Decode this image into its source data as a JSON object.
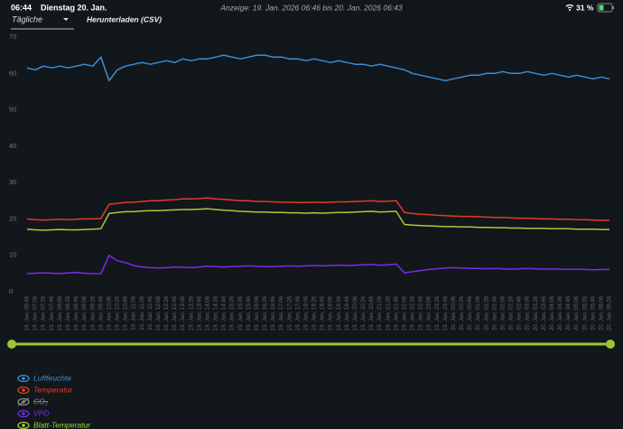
{
  "status_bar": {
    "time": "06:44",
    "date": "Dienstag 20. Jan.",
    "battery": "31 %"
  },
  "toolbar": {
    "range_info": "Anzeige: 19. Jan. 2026 06:46 bis 20. Jan. 2026 06:43",
    "period": "Tägliche",
    "download": "Herunterladen (CSV)"
  },
  "chart_data": {
    "type": "line",
    "categories": [
      "19. Jan. 06:46",
      "19. Jan. 07:06",
      "19. Jan. 07:26",
      "19. Jan. 07:46",
      "19. Jan. 08:06",
      "19. Jan. 08:26",
      "19. Jan. 08:46",
      "19. Jan. 09:06",
      "19. Jan. 09:26",
      "19. Jan. 09:46",
      "19. Jan. 10:06",
      "19. Jan. 10:26",
      "19. Jan. 10:46",
      "19. Jan. 11:06",
      "19. Jan. 11:26",
      "19. Jan. 11:46",
      "19. Jan. 12:06",
      "19. Jan. 12:26",
      "19. Jan. 12:46",
      "19. Jan. 13:06",
      "19. Jan. 13:26",
      "19. Jan. 13:46",
      "19. Jan. 14:06",
      "19. Jan. 14:26",
      "19. Jan. 14:46",
      "19. Jan. 15:06",
      "19. Jan. 15:26",
      "19. Jan. 15:46",
      "19. Jan. 16:06",
      "19. Jan. 16:26",
      "19. Jan. 16:46",
      "19. Jan. 17:06",
      "19. Jan. 17:26",
      "19. Jan. 17:46",
      "19. Jan. 18:06",
      "19. Jan. 18:26",
      "19. Jan. 18:46",
      "19. Jan. 19:06",
      "19. Jan. 19:26",
      "19. Jan. 19:46",
      "19. Jan. 20:06",
      "19. Jan. 20:26",
      "19. Jan. 20:46",
      "19. Jan. 21:06",
      "19. Jan. 21:26",
      "19. Jan. 21:46",
      "19. Jan. 22:06",
      "19. Jan. 22:26",
      "19. Jan. 22:46",
      "19. Jan. 23:06",
      "19. Jan. 23:26",
      "19. Jan. 23:46",
      "20. Jan. 00:06",
      "20. Jan. 00:26",
      "20. Jan. 00:46",
      "20. Jan. 01:06",
      "20. Jan. 01:26",
      "20. Jan. 01:46",
      "20. Jan. 02:06",
      "20. Jan. 02:26",
      "20. Jan. 02:46",
      "20. Jan. 03:06",
      "20. Jan. 03:26",
      "20. Jan. 03:46",
      "20. Jan. 04:06",
      "20. Jan. 04:26",
      "20. Jan. 04:46",
      "20. Jan. 05:06",
      "20. Jan. 05:26",
      "20. Jan. 05:46",
      "20. Jan. 06:06",
      "20. Jan. 06:26"
    ],
    "series": [
      {
        "name": "Luftfeuchte",
        "color": "#3a8fd8",
        "values": [
          61.5,
          61,
          62,
          61.5,
          62,
          61.5,
          62,
          62.5,
          62,
          64.5,
          58,
          61,
          62,
          62.5,
          63,
          62.5,
          63,
          63.5,
          63,
          64,
          63.5,
          64,
          64,
          64.5,
          65,
          64.5,
          64,
          64.5,
          65,
          65,
          64.5,
          64.5,
          64,
          64,
          63.5,
          64,
          63.5,
          63,
          63.5,
          63,
          62.5,
          62.5,
          62,
          62.5,
          62,
          61.5,
          61,
          60,
          59.5,
          59,
          58.5,
          58,
          58.5,
          59,
          59.5,
          59.5,
          60,
          60,
          60.5,
          60,
          60,
          60.5,
          60,
          59.5,
          60,
          59.5,
          59,
          59.5,
          59,
          58.5,
          59,
          58.5
        ]
      },
      {
        "name": "Temperatur",
        "color": "#e33b25",
        "values": [
          20,
          19.8,
          19.7,
          19.8,
          19.9,
          19.8,
          19.9,
          20,
          20,
          20.1,
          24,
          24.3,
          24.5,
          24.6,
          24.8,
          25,
          25,
          25.2,
          25.3,
          25.5,
          25.5,
          25.6,
          25.8,
          25.5,
          25.4,
          25.2,
          25,
          25,
          24.8,
          24.8,
          24.7,
          24.6,
          24.6,
          24.5,
          24.5,
          24.6,
          24.5,
          24.6,
          24.7,
          24.7,
          24.8,
          24.9,
          25,
          24.8,
          24.9,
          25,
          21.8,
          21.5,
          21.3,
          21.2,
          21,
          20.9,
          20.8,
          20.7,
          20.7,
          20.6,
          20.5,
          20.4,
          20.4,
          20.3,
          20.2,
          20.2,
          20.1,
          20,
          20,
          19.9,
          19.9,
          19.8,
          19.8,
          19.7,
          19.6,
          19.6
        ]
      },
      {
        "name": "VPD",
        "color": "#7a2be6",
        "values": [
          5,
          5.1,
          5.2,
          5.1,
          5,
          5.2,
          5.3,
          5.1,
          5,
          4.9,
          10,
          8.5,
          8,
          7.2,
          6.8,
          6.6,
          6.5,
          6.6,
          6.8,
          6.7,
          6.6,
          6.8,
          7,
          6.9,
          6.8,
          6.9,
          7,
          7.1,
          7,
          6.9,
          6.9,
          7,
          7.1,
          7,
          7.1,
          7.2,
          7.1,
          7.2,
          7.3,
          7.2,
          7.3,
          7.4,
          7.5,
          7.3,
          7.4,
          7.6,
          5.2,
          5.5,
          5.8,
          6.1,
          6.3,
          6.5,
          6.6,
          6.5,
          6.4,
          6.4,
          6.3,
          6.4,
          6.3,
          6.2,
          6.3,
          6.4,
          6.3,
          6.2,
          6.3,
          6.2,
          6.1,
          6.2,
          6.1,
          6,
          6.1,
          6.1
        ]
      },
      {
        "name": "Blatt-Temperatur",
        "color": "#a8cb3a",
        "values": [
          17.2,
          17,
          16.9,
          17,
          17.1,
          17,
          17,
          17.1,
          17.2,
          17.3,
          21.5,
          21.8,
          22,
          22,
          22.2,
          22.3,
          22.3,
          22.4,
          22.5,
          22.6,
          22.6,
          22.7,
          22.8,
          22.6,
          22.4,
          22.3,
          22.1,
          22,
          21.9,
          21.9,
          21.8,
          21.8,
          21.7,
          21.7,
          21.6,
          21.7,
          21.6,
          21.7,
          21.8,
          21.8,
          21.9,
          22,
          22.1,
          21.9,
          22,
          22.1,
          18.5,
          18.3,
          18.2,
          18.1,
          18,
          17.9,
          17.9,
          17.8,
          17.8,
          17.7,
          17.7,
          17.6,
          17.6,
          17.5,
          17.5,
          17.4,
          17.4,
          17.4,
          17.3,
          17.3,
          17.3,
          17.2,
          17.2,
          17.2,
          17.1,
          17.1
        ]
      }
    ],
    "hidden_series": [
      {
        "name": "CO₂",
        "color": "#8a8a8a"
      }
    ],
    "ylim": [
      0,
      70
    ],
    "yticks": [
      0,
      10,
      20,
      30,
      40,
      50,
      60,
      70
    ],
    "grid": false,
    "slider_color": "#9dc534"
  }
}
